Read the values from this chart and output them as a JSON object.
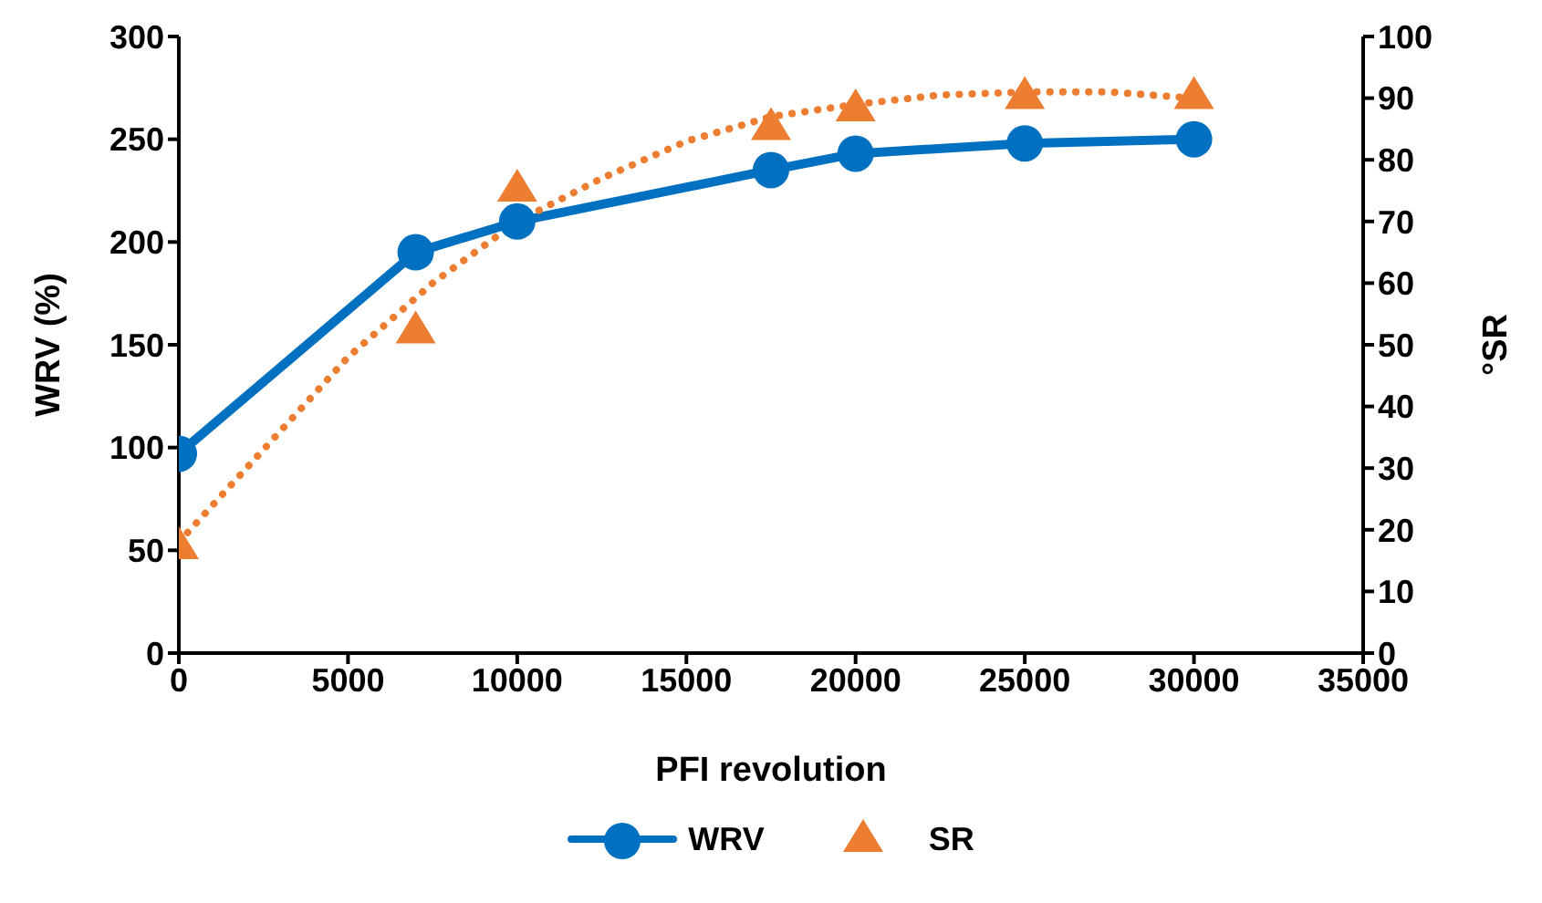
{
  "chart_data": {
    "type": "line",
    "xlabel": "PFI revolution",
    "ylabel": "WRV (%)",
    "y2label": "°SR",
    "x": [
      0,
      7000,
      10000,
      17500,
      20000,
      25000,
      30000
    ],
    "series": [
      {
        "name": "WRV",
        "color": "#0070c0",
        "marker": "circle",
        "values": [
          97,
          195,
          210,
          235,
          243,
          248,
          250
        ]
      },
      {
        "name": "SR",
        "type": "scatter",
        "color": "#ed7d31",
        "marker": "triangle",
        "axis": "y2",
        "values": [
          17,
          52,
          75,
          85,
          88,
          90,
          90
        ]
      },
      {
        "type": "line",
        "color": "#ed7d31",
        "axis": "y2",
        "line_style": "dotted",
        "marker": "none",
        "x": [
          0,
          2500,
          5000,
          7500,
          10000,
          12500,
          15000,
          17500,
          20000,
          22500,
          25000,
          27500,
          30000
        ],
        "values": [
          18,
          33,
          48,
          60,
          70,
          77,
          83,
          87,
          89,
          90.5,
          91,
          91,
          90
        ]
      }
    ],
    "xlim": [
      0,
      35000
    ],
    "xticks": [
      0,
      5000,
      10000,
      15000,
      20000,
      25000,
      30000,
      35000
    ],
    "ylim": [
      0,
      300
    ],
    "yticks": [
      0,
      50,
      100,
      150,
      200,
      250,
      300
    ],
    "y2lim": [
      0,
      100
    ],
    "y2ticks": [
      0,
      10,
      20,
      30,
      40,
      50,
      60,
      70,
      80,
      90,
      100
    ],
    "grid": false,
    "legend": "bottom"
  }
}
